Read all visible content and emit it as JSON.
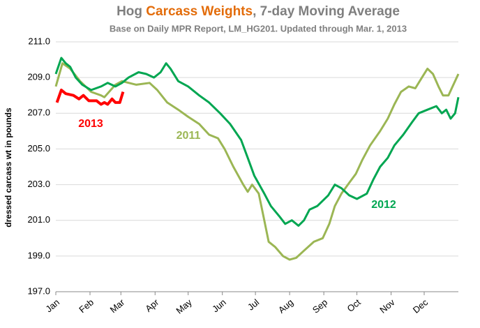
{
  "chart_data": {
    "type": "line",
    "title_parts": [
      {
        "text": "Hog ",
        "color": "#7f7f7f"
      },
      {
        "text": "Carcass Weights",
        "color": "#e36c0a"
      },
      {
        "text": ", 7-day Moving Average",
        "color": "#7f7f7f"
      }
    ],
    "subtitle": "Base on Daily MPR Report, LM_HG201.  Updated through Mar. 1, 2013",
    "y_label": "dressed carcass  wt in pounds",
    "xlim": [
      0,
      365
    ],
    "xticks": [
      {
        "value": 0,
        "label": "Jan"
      },
      {
        "value": 31,
        "label": "Feb"
      },
      {
        "value": 59,
        "label": "Mar"
      },
      {
        "value": 90,
        "label": "Apr"
      },
      {
        "value": 120,
        "label": "May"
      },
      {
        "value": 151,
        "label": "Jun"
      },
      {
        "value": 181,
        "label": "Jul"
      },
      {
        "value": 212,
        "label": "Aug"
      },
      {
        "value": 243,
        "label": "Sep"
      },
      {
        "value": 273,
        "label": "Oct"
      },
      {
        "value": 304,
        "label": "Nov"
      },
      {
        "value": 334,
        "label": "Dec"
      }
    ],
    "ylim": [
      197,
      211
    ],
    "yticks": [
      {
        "value": 197,
        "label": "197.0"
      },
      {
        "value": 199,
        "label": "199.0"
      },
      {
        "value": 201,
        "label": "201.0"
      },
      {
        "value": 203,
        "label": "203.0"
      },
      {
        "value": 205,
        "label": "205.0"
      },
      {
        "value": 207,
        "label": "207.0"
      },
      {
        "value": 209,
        "label": "209.0"
      },
      {
        "value": 211,
        "label": "211.0"
      }
    ],
    "grid": true,
    "series": [
      {
        "name": "2011",
        "color": "#9bb654",
        "x": [
          0,
          6,
          13,
          22,
          32,
          41,
          44,
          54,
          60,
          73,
          85,
          92,
          101,
          111,
          120,
          130,
          139,
          147,
          153,
          161,
          170,
          174,
          178,
          184,
          189,
          193,
          199,
          206,
          212,
          218,
          225,
          234,
          242,
          248,
          253,
          259,
          266,
          272,
          278,
          285,
          294,
          301,
          307,
          313,
          320,
          326,
          332,
          337,
          342,
          347,
          351,
          356,
          359,
          365
        ],
        "values": [
          208.5,
          209.8,
          209.5,
          208.8,
          208.2,
          208.0,
          207.9,
          208.6,
          208.8,
          208.6,
          208.7,
          208.3,
          207.6,
          207.2,
          206.8,
          206.4,
          205.8,
          205.6,
          205.0,
          204.0,
          203.0,
          202.6,
          203.0,
          202.5,
          201.0,
          199.8,
          199.5,
          199.0,
          198.8,
          198.9,
          199.3,
          199.8,
          200.0,
          200.8,
          201.8,
          202.5,
          203.1,
          203.6,
          204.4,
          205.2,
          206.0,
          206.7,
          207.5,
          208.2,
          208.5,
          208.4,
          209.0,
          209.5,
          209.2,
          208.5,
          208.0,
          208.0,
          208.4,
          209.2
        ]
      },
      {
        "name": "2012",
        "color": "#00a651",
        "x": [
          0,
          5,
          9,
          13,
          18,
          24,
          32,
          41,
          47,
          54,
          60,
          66,
          75,
          82,
          89,
          95,
          100,
          104,
          111,
          120,
          130,
          139,
          149,
          158,
          168,
          174,
          180,
          189,
          195,
          203,
          208,
          214,
          220,
          225,
          230,
          237,
          247,
          253,
          259,
          266,
          273,
          282,
          288,
          294,
          301,
          307,
          315,
          323,
          329,
          337,
          345,
          350,
          354,
          358,
          362,
          365
        ],
        "values": [
          209.2,
          210.1,
          209.8,
          209.6,
          209.0,
          208.6,
          208.3,
          208.5,
          208.7,
          208.5,
          208.7,
          209.0,
          209.3,
          209.2,
          209.0,
          209.3,
          209.8,
          209.5,
          208.8,
          208.5,
          208.0,
          207.6,
          207.0,
          206.4,
          205.5,
          204.5,
          203.5,
          202.5,
          201.8,
          201.2,
          200.8,
          201.0,
          200.7,
          201.0,
          201.6,
          201.8,
          202.4,
          203.0,
          202.8,
          202.4,
          202.2,
          202.5,
          203.3,
          204.0,
          204.5,
          205.2,
          205.8,
          206.5,
          207.0,
          207.2,
          207.4,
          207.0,
          207.2,
          206.7,
          207.0,
          207.9
        ]
      },
      {
        "name": "2013",
        "color": "#ff0000",
        "x": [
          1,
          5,
          9,
          16,
          21,
          25,
          30,
          37,
          41,
          44,
          47,
          51,
          54,
          58,
          61
        ],
        "values": [
          207.6,
          208.3,
          208.1,
          208.0,
          207.8,
          208.0,
          207.7,
          207.7,
          207.5,
          207.6,
          207.5,
          207.8,
          207.6,
          207.6,
          208.2
        ]
      }
    ]
  }
}
